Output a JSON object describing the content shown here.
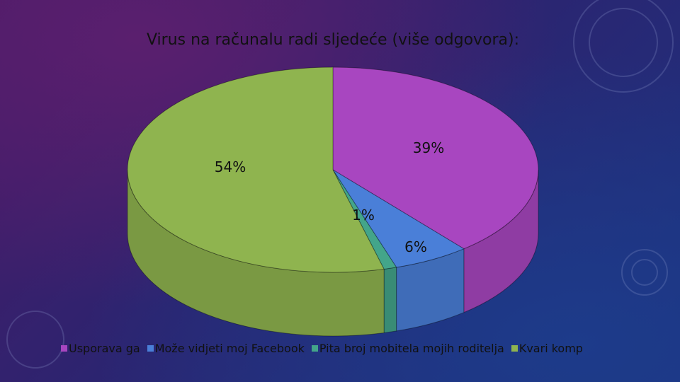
{
  "slide": {
    "title": "Virus na računalu radi sljedeće (više odgovora):"
  },
  "chart_data": {
    "type": "pie",
    "title": "Virus na računalu radi sljedeće (više odgovora):",
    "categories": [
      "Usporava ga",
      "Može vidjeti moj Facebook",
      "Pita broj mobitela mojih roditelja",
      "Kvari komp"
    ],
    "values": [
      39,
      6,
      1,
      54
    ],
    "data_labels": [
      "39%",
      "6%",
      "1%",
      "54%"
    ],
    "colors": [
      "#a846c0",
      "#4a7fd8",
      "#43a58a",
      "#8fb44f"
    ],
    "legend_position": "bottom",
    "style": "3d"
  }
}
